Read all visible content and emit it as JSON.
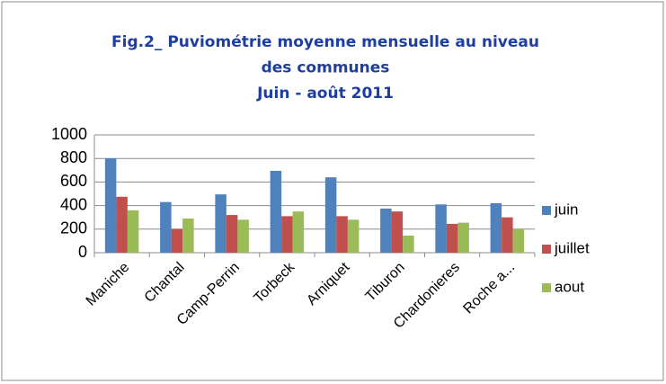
{
  "chart_data": {
    "type": "bar",
    "title": [
      "Fig.2_ Puviométrie moyenne mensuelle au niveau",
      "des communes",
      "Juin - août 2011"
    ],
    "categories": [
      "Maniche",
      "Chantal",
      "Camp-Perrin",
      "Torbeck",
      "Arniquet",
      "Tiburon",
      "Chardonieres",
      "Roche a..."
    ],
    "series": [
      {
        "name": "juin",
        "color": "#4f81bd",
        "values": [
          800,
          430,
          495,
          695,
          640,
          375,
          410,
          420
        ]
      },
      {
        "name": "juillet",
        "color": "#c0504d",
        "values": [
          475,
          200,
          320,
          310,
          310,
          350,
          245,
          300
        ]
      },
      {
        "name": "aout",
        "color": "#9bbb59",
        "values": [
          360,
          290,
          280,
          350,
          280,
          145,
          255,
          200
        ]
      }
    ],
    "ylim": [
      0,
      1000
    ],
    "yticks": [
      0,
      200,
      400,
      600,
      800,
      1000
    ],
    "grid": true,
    "legend": "right"
  }
}
